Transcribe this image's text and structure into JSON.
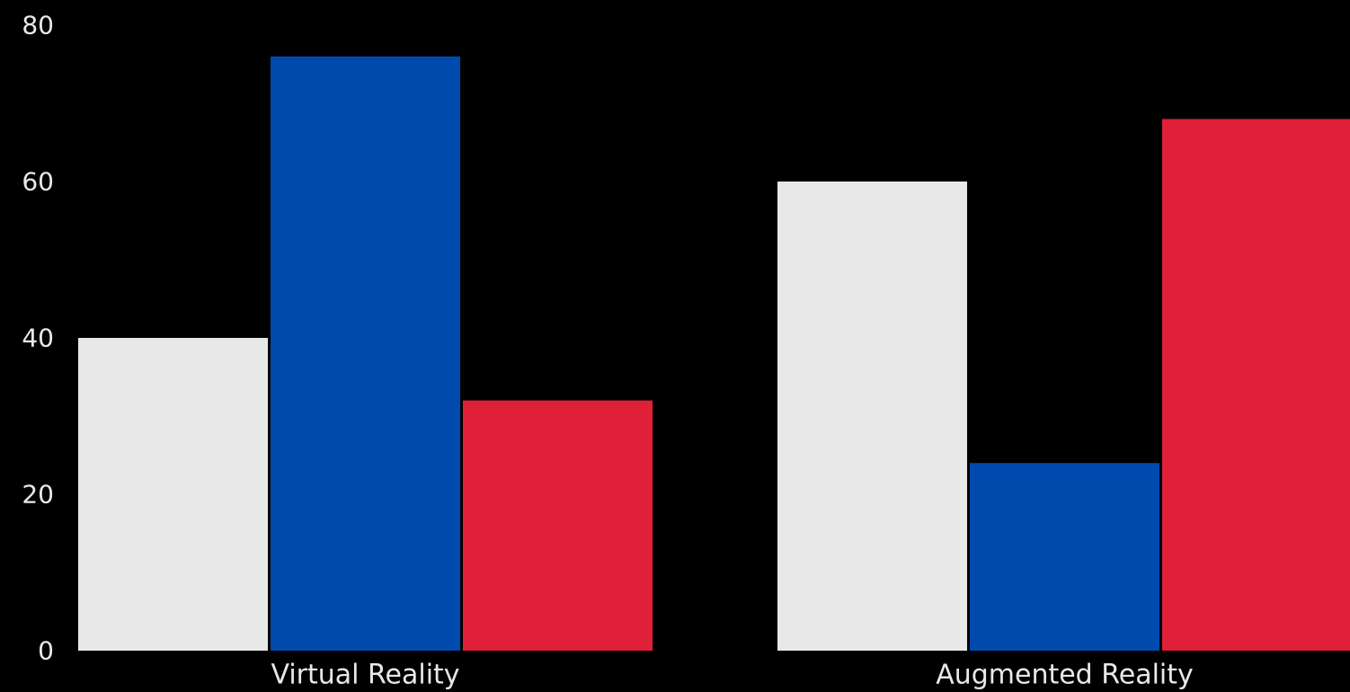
{
  "chart_data": {
    "type": "bar",
    "categories": [
      "Virtual Reality",
      "Augmented Reality"
    ],
    "series": [
      {
        "values": [
          40,
          60
        ],
        "color": "#E8E8E8"
      },
      {
        "values": [
          76,
          24
        ],
        "color": "#004AAD"
      },
      {
        "values": [
          32,
          68
        ],
        "color": "#E01F39"
      }
    ],
    "ylim": [
      0,
      80
    ],
    "yticks": [
      0,
      20,
      40,
      60,
      80
    ],
    "grid": false,
    "legend": "none"
  }
}
